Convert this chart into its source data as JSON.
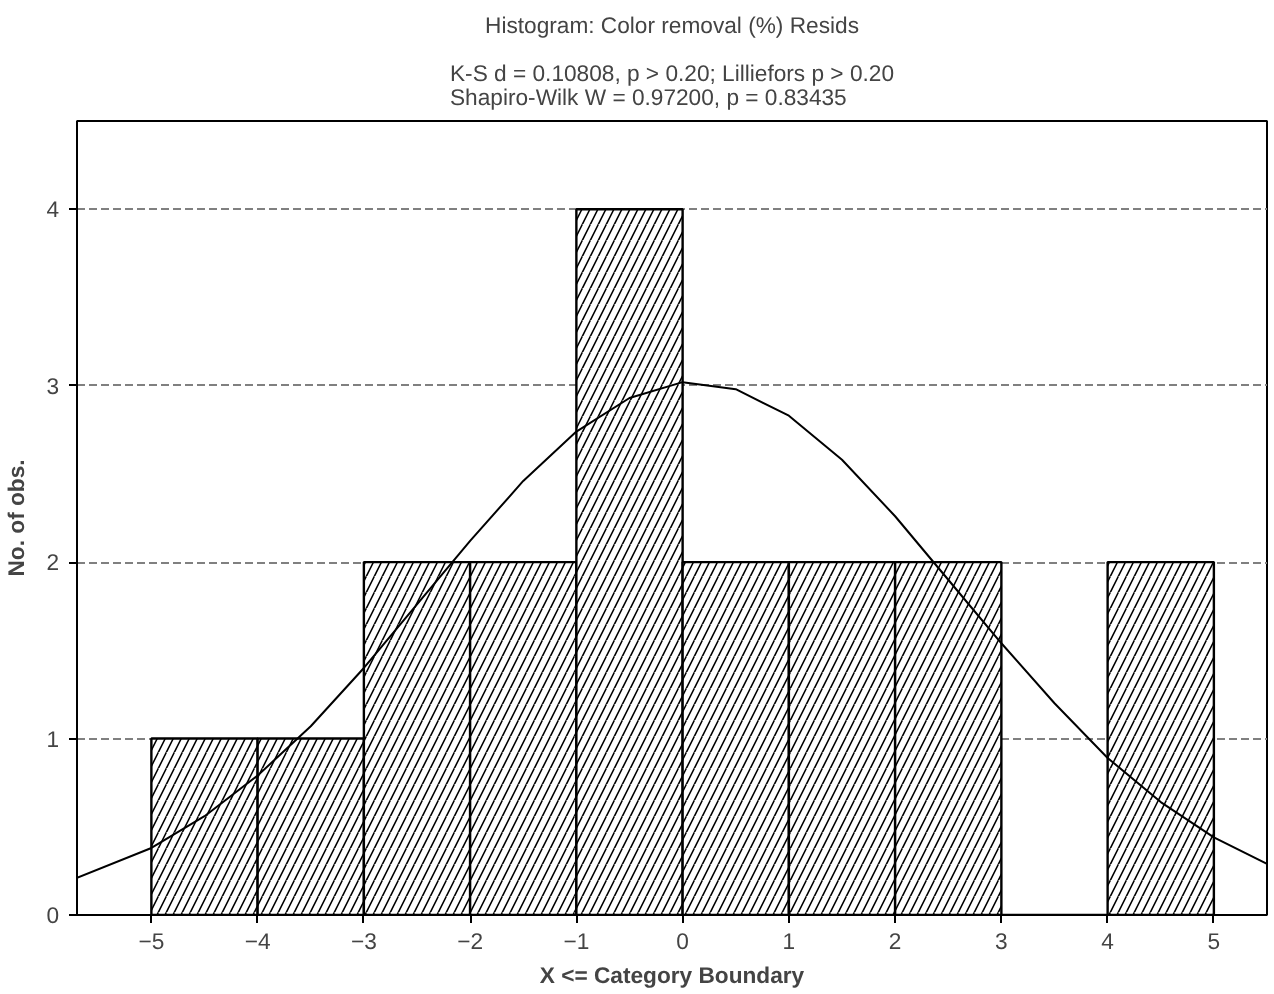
{
  "chart_data": {
    "type": "histogram",
    "title": "Histogram: Color removal (%) Resids",
    "subtitle": "K-S d = 0.10808, p > 0.20; Lilliefors p > 0.20\nShapiro-Wilk W = 0.97200, p = 0.83435",
    "xlabel": "X <= Category Boundary",
    "ylabel": "No. of obs.",
    "bins": [
      -5,
      -4,
      -3,
      -2,
      -1,
      0,
      1,
      2,
      3,
      4,
      5
    ],
    "values": [
      1,
      1,
      2,
      2,
      4,
      2,
      2,
      2,
      0,
      2
    ],
    "color": "#000000",
    "series": [
      {
        "type": "line",
        "color": "#000000",
        "x": [
          -5.7,
          -5,
          -4.5,
          -4,
          -3.5,
          -3,
          -2.5,
          -2,
          -1.5,
          -1,
          -0.5,
          0,
          0.5,
          1,
          1.5,
          2,
          2.5,
          3,
          3.5,
          4,
          4.5,
          5,
          5.5
        ],
        "values": [
          0.21,
          0.38,
          0.56,
          0.79,
          1.07,
          1.4,
          1.76,
          2.12,
          2.46,
          2.74,
          2.93,
          3.02,
          2.98,
          2.83,
          2.58,
          2.26,
          1.9,
          1.54,
          1.2,
          0.89,
          0.64,
          0.44,
          0.29
        ]
      }
    ],
    "xlim": [
      -5.7,
      5.5
    ],
    "ylim": [
      0,
      4.5
    ],
    "xticks": [
      -5,
      -4,
      -3,
      -2,
      -1,
      0,
      1,
      2,
      3,
      4,
      5
    ],
    "yticks": [
      0,
      1,
      2,
      3,
      4
    ],
    "grid": "y",
    "line_style": "solid"
  }
}
